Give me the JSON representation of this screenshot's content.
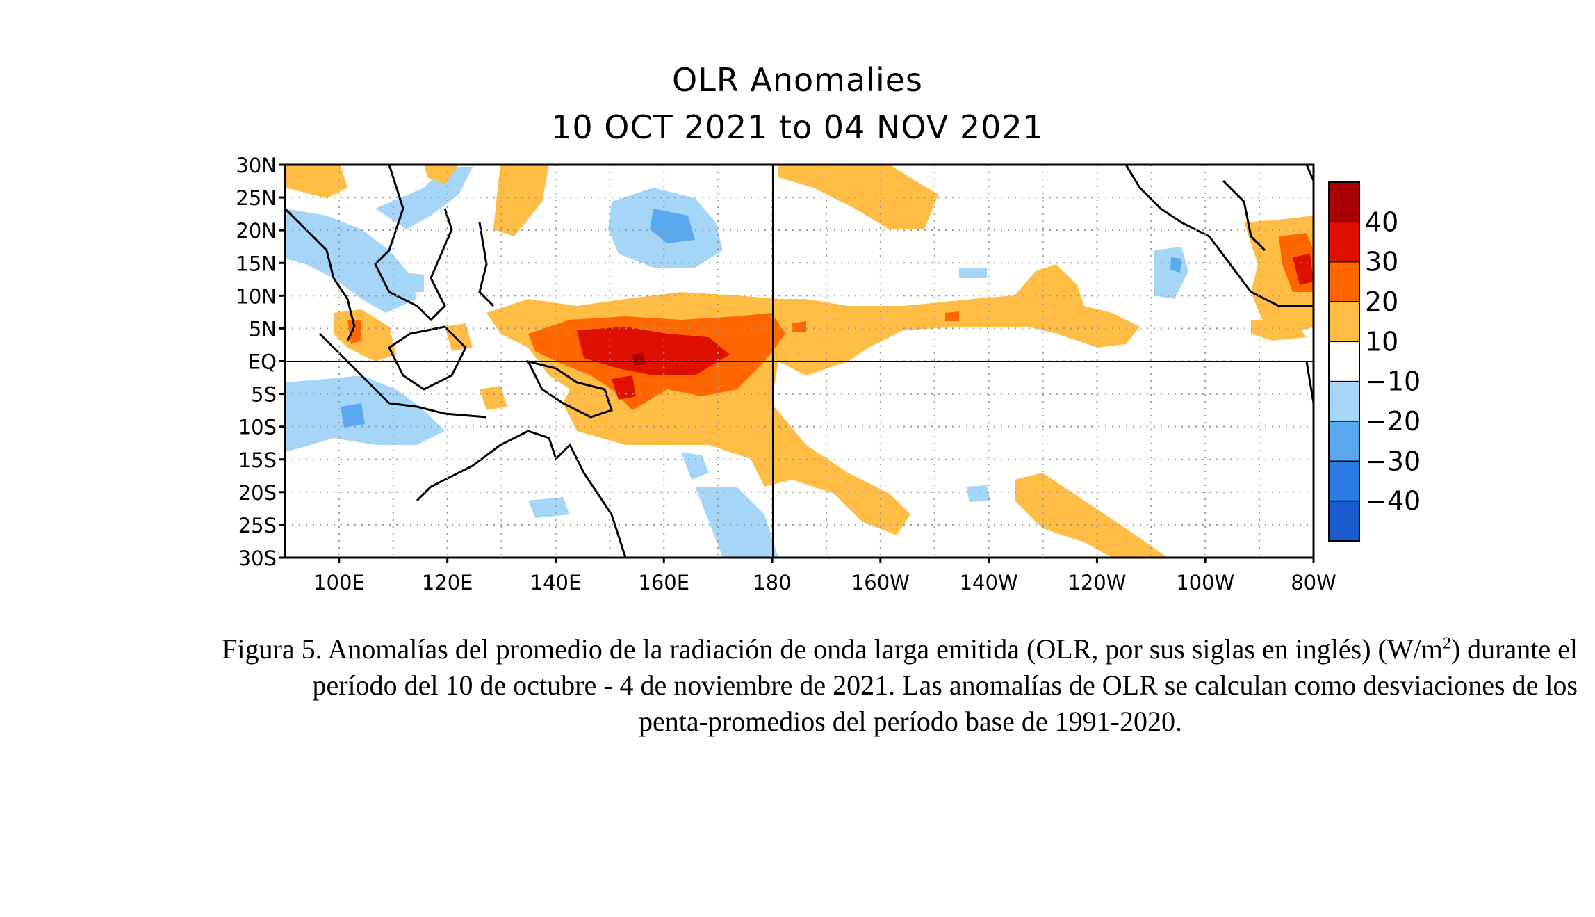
{
  "map": {
    "title_line1": "OLR Anomalies",
    "title_line2": "10 OCT 2021 to 04 NOV 2021",
    "lat_labels": [
      "30N",
      "25N",
      "20N",
      "15N",
      "10N",
      "5N",
      "EQ",
      "5S",
      "10S",
      "15S",
      "20S",
      "25S",
      "30S"
    ],
    "lon_labels": [
      "100E",
      "120E",
      "140E",
      "160E",
      "180",
      "160W",
      "140W",
      "120W",
      "100W",
      "80W"
    ],
    "legend_labels": [
      "40",
      "30",
      "20",
      "10",
      "−10",
      "−20",
      "−30",
      "−40"
    ],
    "legend_colors": [
      "#a80000",
      "#e01000",
      "#ff6600",
      "#ffbd45",
      "#ffffff",
      "#a5d6f7",
      "#5aa8f0",
      "#2c7ce8",
      "#1a5ccf"
    ],
    "anomaly_colors": {
      "pos10": "#ffbd45",
      "pos20": "#ff6600",
      "pos30": "#e01000",
      "pos40": "#a80000",
      "neg10": "#a5d6f7",
      "neg20": "#5aa8f0"
    }
  },
  "caption": {
    "line1_a": "Figura 5. Anomalías del promedio de la radiación de onda larga emitida (OLR, por sus siglas en inglés) (W/m",
    "line1_sup": "2",
    "line1_b": ") durante el",
    "line2": "período del 10 de octubre - 4 de noviembre de 2021.  Las anomalías de OLR se calculan como desviaciones de los",
    "line3": "penta-promedios del período base de 1991-2020."
  }
}
